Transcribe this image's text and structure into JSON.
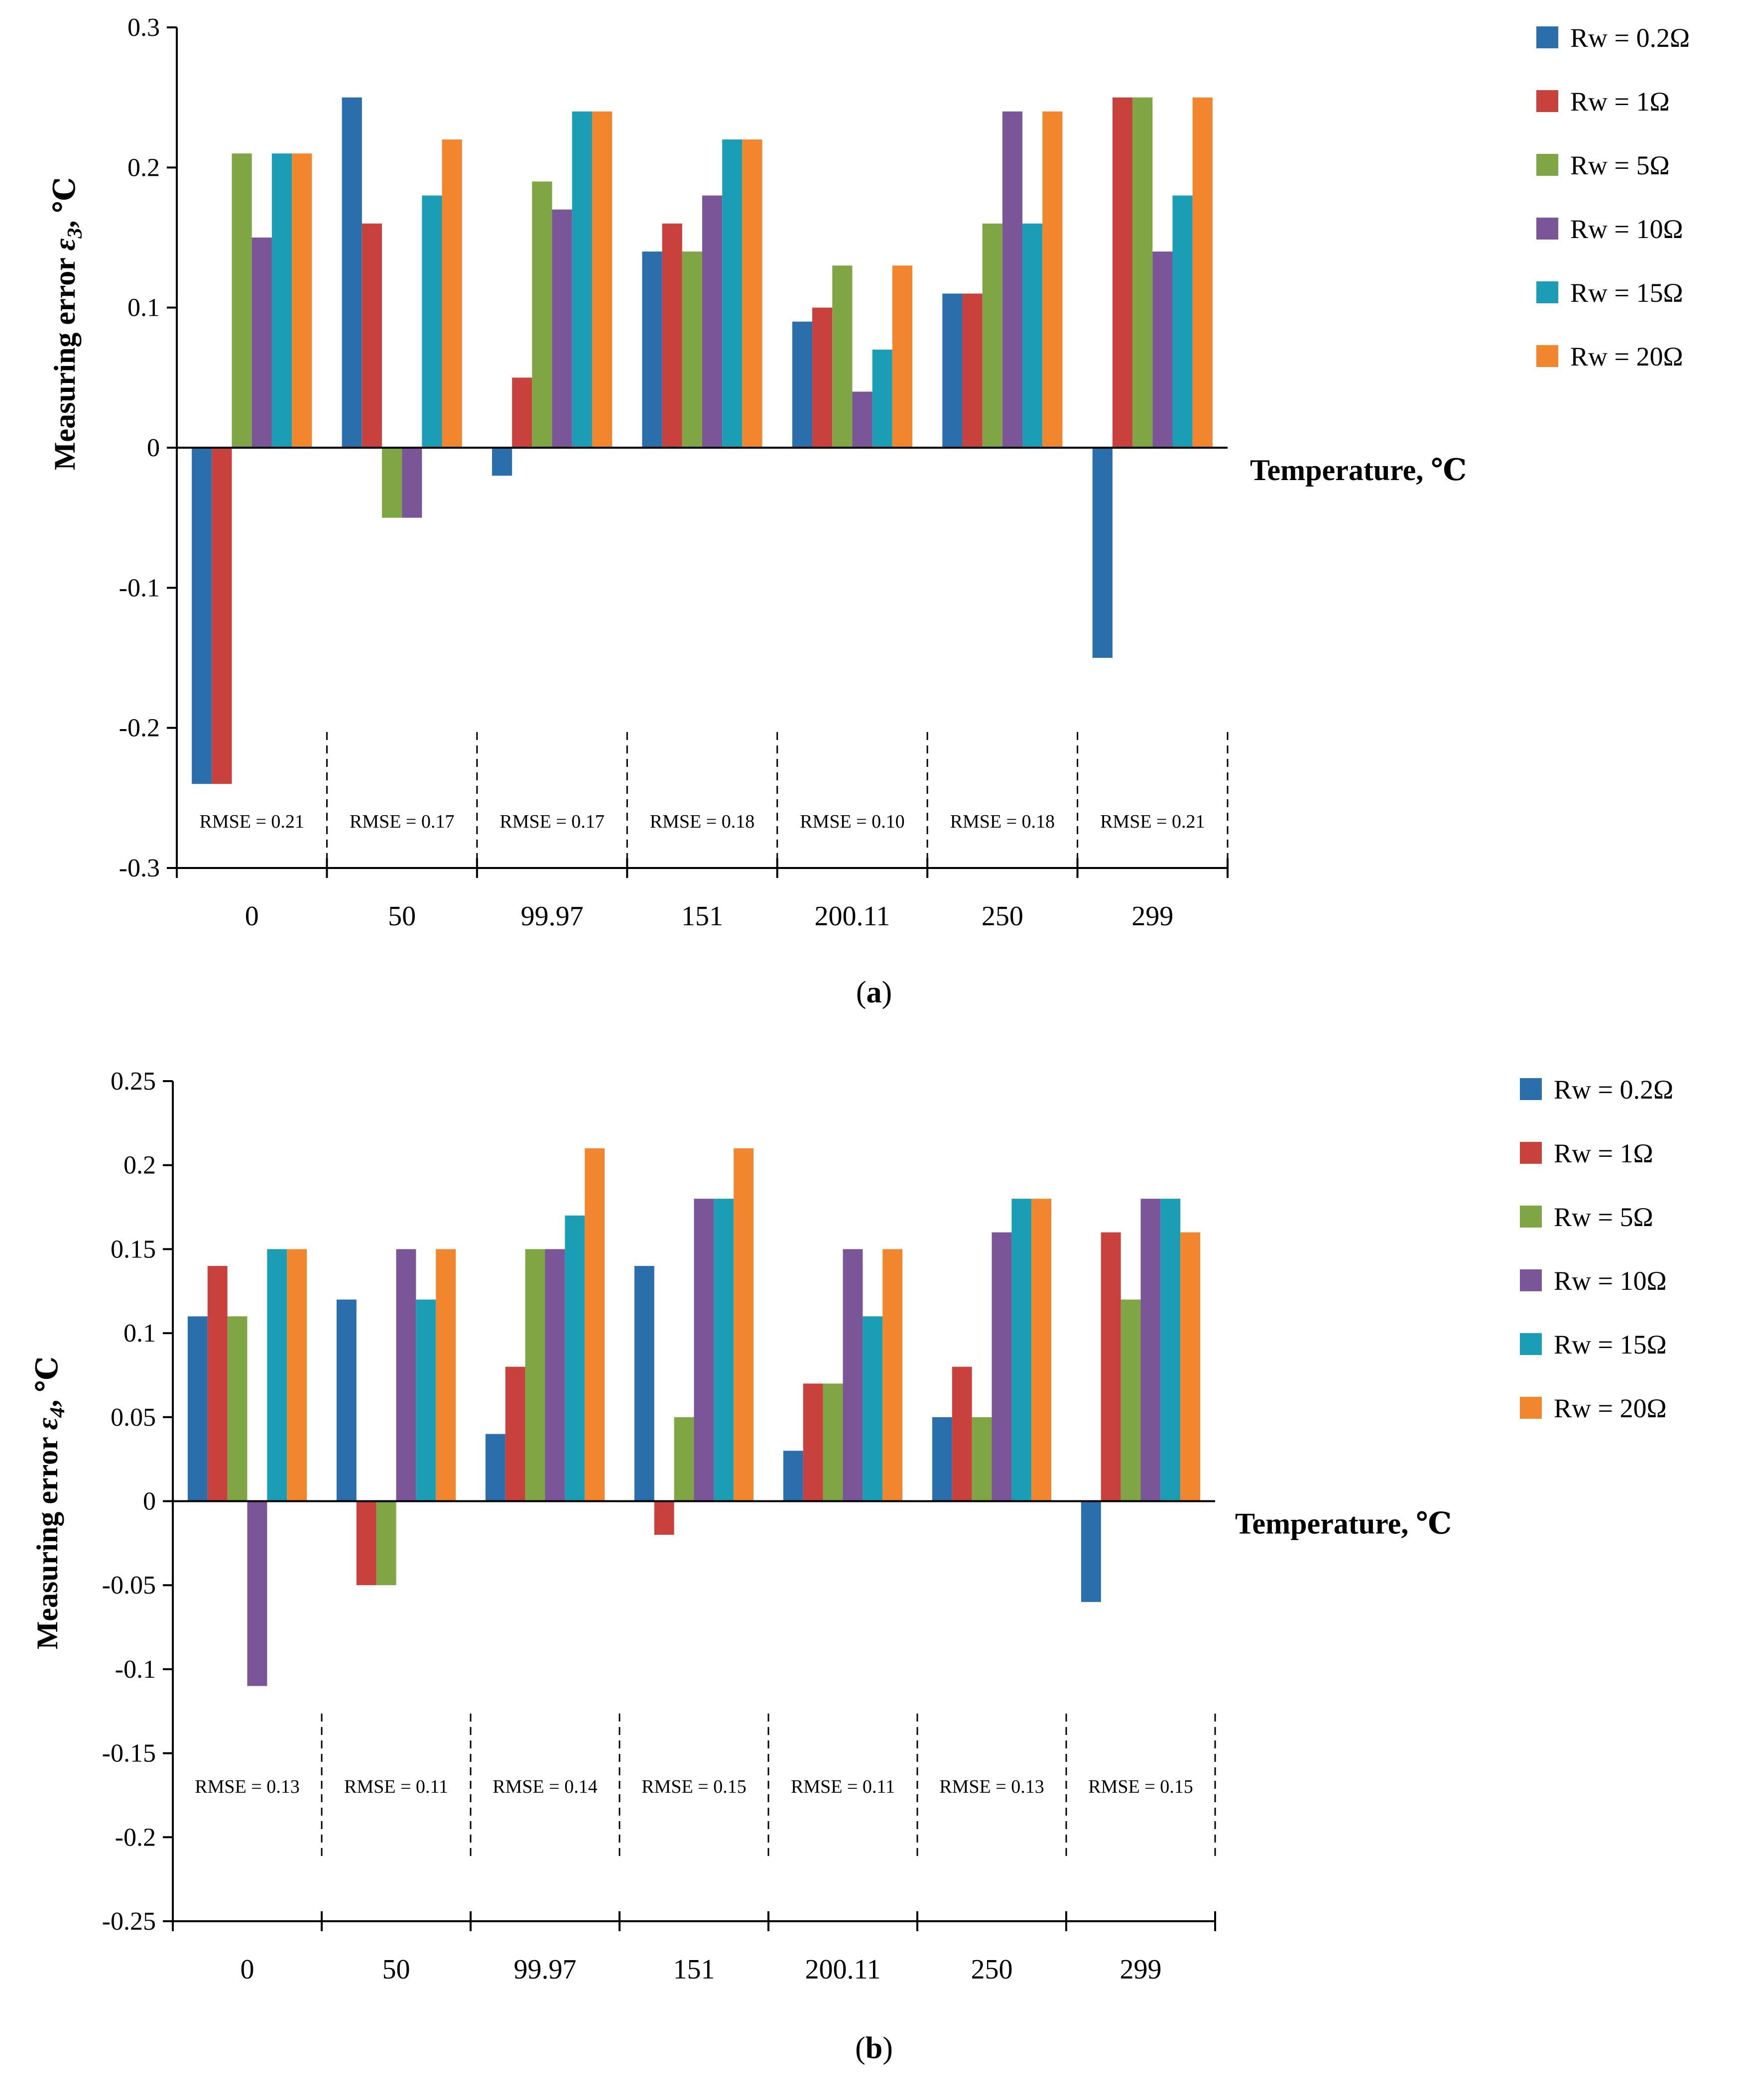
{
  "chart_data": [
    {
      "type": "bar",
      "panel": "a",
      "title": "",
      "xlabel": "Temperature, ℃",
      "ylabel_parts": {
        "pre": "Measuring error ",
        "sym": "ε",
        "sub": "3",
        "post": ", ℃"
      },
      "ylim": [
        -0.3,
        0.3
      ],
      "yticks": [
        0.3,
        0.2,
        0.1,
        0,
        -0.1,
        -0.2,
        -0.3
      ],
      "ytick_labels": [
        "0.3",
        "0.2",
        "0.1",
        "0",
        "-0.1",
        "-0.2",
        "-0.3"
      ],
      "categories": [
        "0",
        "50",
        "99.97",
        "151",
        "200.11",
        "250",
        "299"
      ],
      "series": [
        {
          "name": "Rw = 0.2Ω",
          "values": [
            -0.24,
            0.25,
            -0.02,
            0.14,
            0.09,
            0.11,
            -0.15
          ]
        },
        {
          "name": "Rw = 1Ω",
          "values": [
            -0.24,
            0.16,
            0.05,
            0.16,
            0.1,
            0.11,
            0.25
          ]
        },
        {
          "name": "Rw = 5Ω",
          "values": [
            0.21,
            -0.05,
            0.19,
            0.14,
            0.13,
            0.16,
            0.25
          ]
        },
        {
          "name": "Rw = 10Ω",
          "values": [
            0.15,
            -0.05,
            0.17,
            0.18,
            0.04,
            0.24,
            0.14
          ]
        },
        {
          "name": "Rw = 15Ω",
          "values": [
            0.21,
            0.18,
            0.24,
            0.22,
            0.07,
            0.16,
            0.18
          ]
        },
        {
          "name": "Rw = 20Ω",
          "values": [
            0.21,
            0.22,
            0.24,
            0.22,
            0.13,
            0.24,
            0.25
          ]
        }
      ],
      "annotations": [
        "RMSE = 0.21",
        "RMSE = 0.17",
        "RMSE = 0.17",
        "RMSE = 0.18",
        "RMSE = 0.10",
        "RMSE = 0.18",
        "RMSE = 0.21"
      ],
      "legend_position": "right",
      "caption": "a"
    },
    {
      "type": "bar",
      "panel": "b",
      "title": "",
      "xlabel": "Temperature, ℃",
      "ylabel_parts": {
        "pre": "Measuring error ",
        "sym": "ε",
        "sub": "4",
        "post": ", ℃"
      },
      "ylim": [
        -0.25,
        0.25
      ],
      "yticks": [
        0.25,
        0.2,
        0.15,
        0.1,
        0.05,
        0,
        -0.05,
        -0.1,
        -0.15,
        -0.2,
        -0.25
      ],
      "ytick_labels": [
        "0.25",
        "0.2",
        "0.15",
        "0.1",
        "0.05",
        "0",
        "-0.05",
        "-0.1",
        "-0.15",
        "-0.2",
        "-0.25"
      ],
      "categories": [
        "0",
        "50",
        "99.97",
        "151",
        "200.11",
        "250",
        "299"
      ],
      "series": [
        {
          "name": "Rw = 0.2Ω",
          "values": [
            0.11,
            0.12,
            0.04,
            0.14,
            0.03,
            0.05,
            -0.06
          ]
        },
        {
          "name": "Rw = 1Ω",
          "values": [
            0.14,
            -0.05,
            0.08,
            -0.02,
            0.07,
            0.08,
            0.16
          ]
        },
        {
          "name": "Rw = 5Ω",
          "values": [
            0.11,
            -0.05,
            0.15,
            0.05,
            0.07,
            0.05,
            0.12
          ]
        },
        {
          "name": "Rw = 10Ω",
          "values": [
            -0.11,
            0.15,
            0.15,
            0.18,
            0.15,
            0.16,
            0.18
          ]
        },
        {
          "name": "Rw = 15Ω",
          "values": [
            0.15,
            0.12,
            0.17,
            0.18,
            0.11,
            0.18,
            0.18
          ]
        },
        {
          "name": "Rw = 20Ω",
          "values": [
            0.15,
            0.15,
            0.21,
            0.21,
            0.15,
            0.18,
            0.16
          ]
        }
      ],
      "annotations": [
        "RMSE = 0.13",
        "RMSE = 0.11",
        "RMSE = 0.14",
        "RMSE = 0.15",
        "RMSE = 0.11",
        "RMSE = 0.13",
        "RMSE = 0.15"
      ],
      "legend_position": "right",
      "caption": "b"
    }
  ],
  "colors": [
    "#2a6fab",
    "#c9413d",
    "#7fa544",
    "#7a5598",
    "#1a9db5",
    "#f1862e"
  ]
}
